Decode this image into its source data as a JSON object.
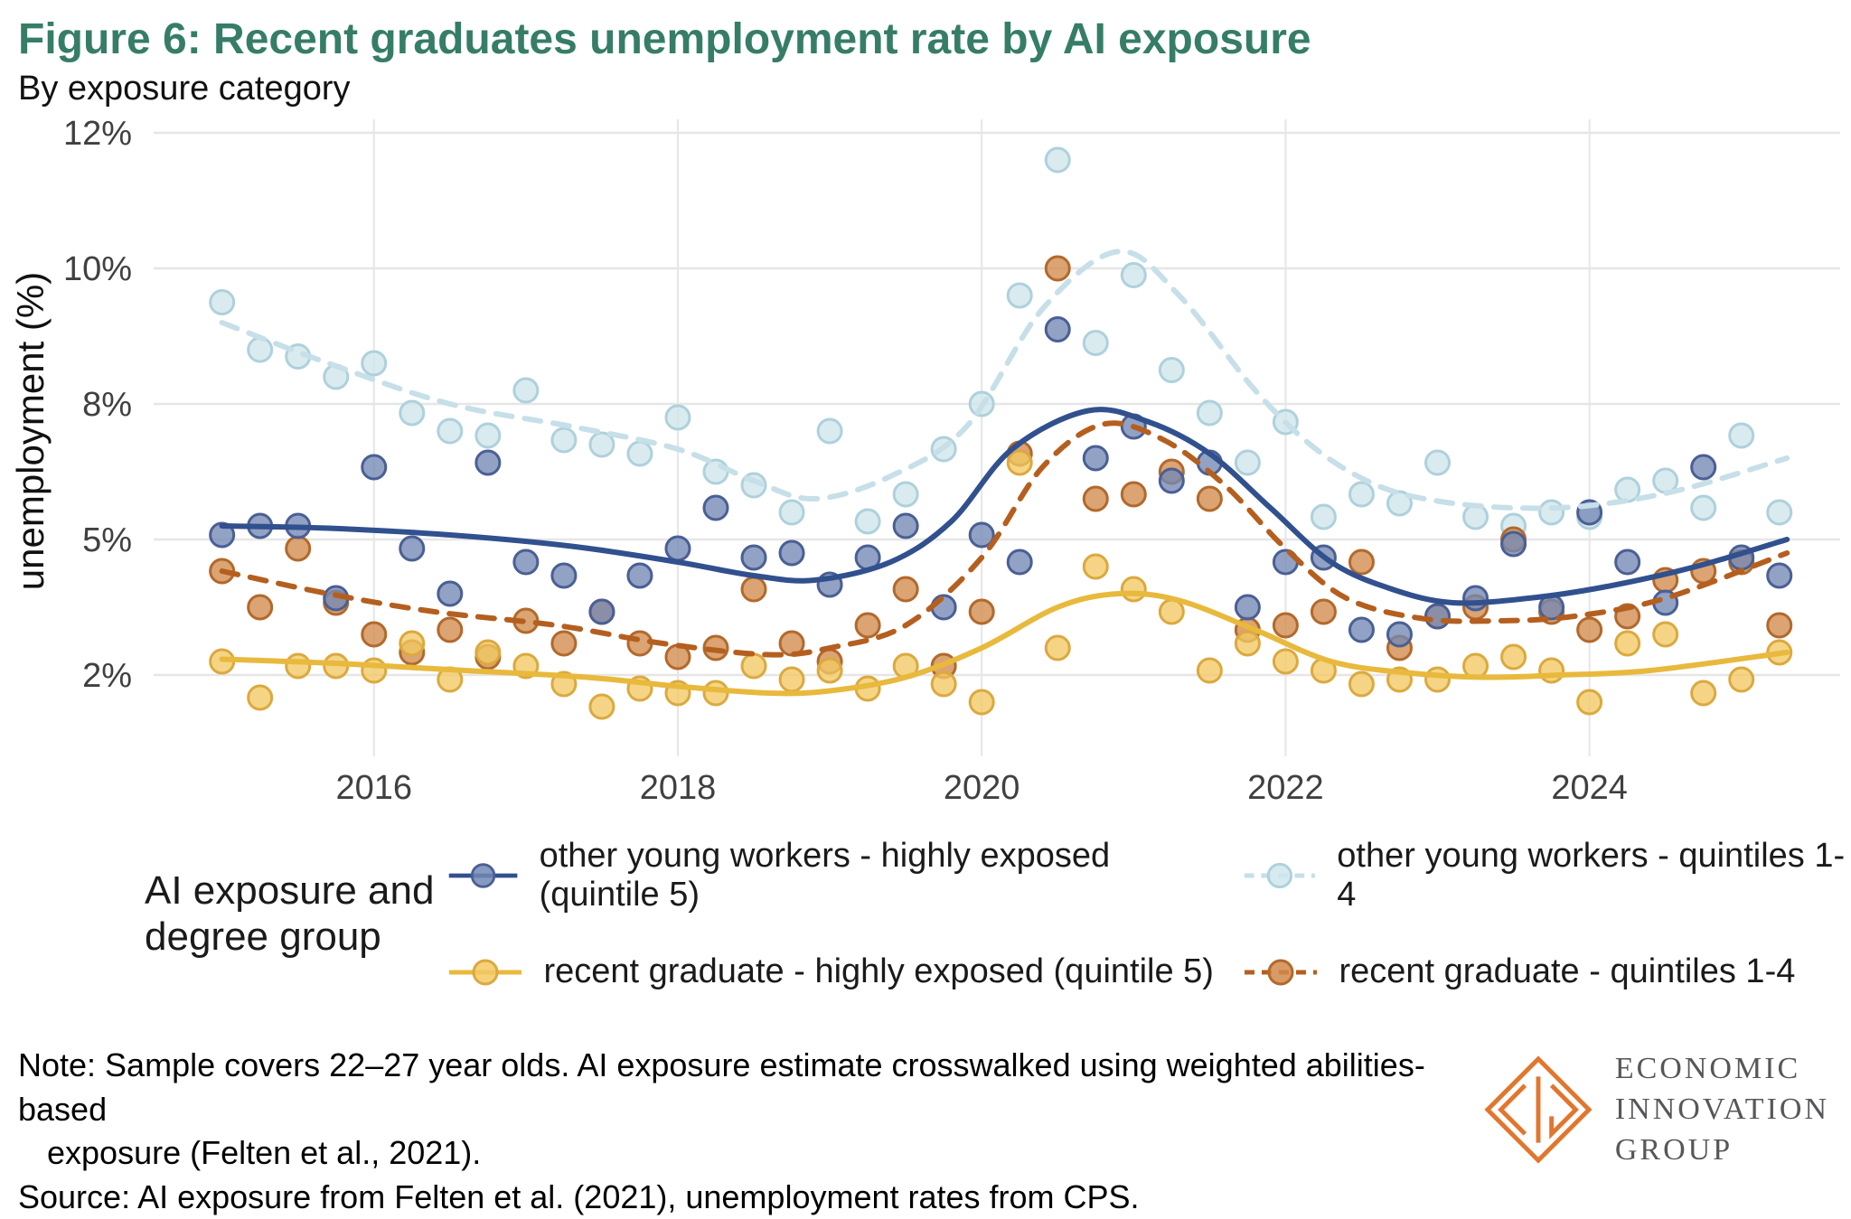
{
  "title": "Figure 6: Recent graduates unemployment rate by AI exposure",
  "subtitle": "By exposure category",
  "colors": {
    "title": "#367d67",
    "logo_orange": "#e2762e",
    "grid": "#e6e6e6",
    "axis_text": "#404040"
  },
  "chart_data": {
    "type": "scatter",
    "title": "Figure 6: Recent graduates unemployment rate by AI exposure",
    "subtitle": "By exposure category",
    "xlabel": "",
    "ylabel": "unemployment (%)",
    "x_range": [
      2014.55,
      2025.65
    ],
    "x_ticks": [
      2016,
      2018,
      2020,
      2022,
      2024
    ],
    "y_ticks": [
      2,
      5,
      8,
      10,
      12
    ],
    "y_tick_labels": [
      "2%",
      "5%",
      "8%",
      "10%",
      "12%"
    ],
    "grid": true,
    "legend_position": "bottom",
    "series": [
      {
        "name": "other young workers - highly exposed (quintile 5)",
        "color": "#31508e",
        "point_fill": "#7388b5",
        "point_stroke": "#4a5f94",
        "line_style": "solid",
        "points": [
          [
            2015.0,
            5.1
          ],
          [
            2015.25,
            5.3
          ],
          [
            2015.5,
            5.3
          ],
          [
            2015.75,
            3.7
          ],
          [
            2016.0,
            6.6
          ],
          [
            2016.25,
            4.8
          ],
          [
            2016.5,
            3.8
          ],
          [
            2016.75,
            6.7
          ],
          [
            2017.0,
            4.5
          ],
          [
            2017.25,
            4.2
          ],
          [
            2017.5,
            3.4
          ],
          [
            2017.75,
            4.2
          ],
          [
            2018.0,
            4.8
          ],
          [
            2018.25,
            5.7
          ],
          [
            2018.5,
            4.6
          ],
          [
            2018.75,
            4.7
          ],
          [
            2019.0,
            4.0
          ],
          [
            2019.25,
            4.6
          ],
          [
            2019.5,
            5.3
          ],
          [
            2019.75,
            3.5
          ],
          [
            2020.0,
            5.1
          ],
          [
            2020.25,
            4.5
          ],
          [
            2020.5,
            9.1
          ],
          [
            2020.75,
            6.8
          ],
          [
            2021.0,
            7.5
          ],
          [
            2021.25,
            6.3
          ],
          [
            2021.5,
            6.7
          ],
          [
            2021.75,
            3.5
          ],
          [
            2022.0,
            4.5
          ],
          [
            2022.25,
            4.6
          ],
          [
            2022.5,
            3.0
          ],
          [
            2022.75,
            2.9
          ],
          [
            2023.0,
            3.3
          ],
          [
            2023.25,
            3.7
          ],
          [
            2023.5,
            4.9
          ],
          [
            2023.75,
            3.5
          ],
          [
            2024.0,
            5.6
          ],
          [
            2024.25,
            4.5
          ],
          [
            2024.5,
            3.6
          ],
          [
            2024.75,
            6.6
          ],
          [
            2025.0,
            4.6
          ],
          [
            2025.25,
            4.2
          ]
        ],
        "trend": [
          [
            2015,
            5.3
          ],
          [
            2015.7,
            5.25
          ],
          [
            2016.5,
            5.1
          ],
          [
            2017.3,
            4.85
          ],
          [
            2018,
            4.5
          ],
          [
            2018.5,
            4.2
          ],
          [
            2018.9,
            4.1
          ],
          [
            2019.4,
            4.5
          ],
          [
            2019.8,
            5.4
          ],
          [
            2020.2,
            7.0
          ],
          [
            2020.7,
            7.85
          ],
          [
            2021.1,
            7.6
          ],
          [
            2021.5,
            6.9
          ],
          [
            2021.9,
            5.7
          ],
          [
            2022.3,
            4.5
          ],
          [
            2022.7,
            3.9
          ],
          [
            2023.1,
            3.6
          ],
          [
            2023.6,
            3.7
          ],
          [
            2024.1,
            3.95
          ],
          [
            2024.7,
            4.4
          ],
          [
            2025.3,
            5.0
          ]
        ]
      },
      {
        "name": "other young workers - quintiles 1-4",
        "color": "#c6dfe8",
        "point_fill": "#cfe6ec",
        "point_stroke": "#aed1dc",
        "line_style": "dashed",
        "points": [
          [
            2015.0,
            9.5
          ],
          [
            2015.25,
            8.8
          ],
          [
            2015.5,
            8.7
          ],
          [
            2015.75,
            8.4
          ],
          [
            2016.0,
            8.6
          ],
          [
            2016.25,
            7.8
          ],
          [
            2016.5,
            7.4
          ],
          [
            2016.75,
            7.3
          ],
          [
            2017.0,
            8.2
          ],
          [
            2017.25,
            7.2
          ],
          [
            2017.5,
            7.1
          ],
          [
            2017.75,
            6.9
          ],
          [
            2018.0,
            7.7
          ],
          [
            2018.25,
            6.5
          ],
          [
            2018.5,
            6.2
          ],
          [
            2018.75,
            5.6
          ],
          [
            2019.0,
            7.4
          ],
          [
            2019.25,
            5.4
          ],
          [
            2019.5,
            6.0
          ],
          [
            2019.75,
            7.0
          ],
          [
            2020.0,
            8.0
          ],
          [
            2020.25,
            9.6
          ],
          [
            2020.5,
            11.6
          ],
          [
            2020.75,
            8.9
          ],
          [
            2021.0,
            9.9
          ],
          [
            2021.25,
            8.5
          ],
          [
            2021.5,
            7.8
          ],
          [
            2021.75,
            6.7
          ],
          [
            2022.0,
            7.6
          ],
          [
            2022.25,
            5.5
          ],
          [
            2022.5,
            6.0
          ],
          [
            2022.75,
            5.8
          ],
          [
            2023.0,
            6.7
          ],
          [
            2023.25,
            5.5
          ],
          [
            2023.5,
            5.3
          ],
          [
            2023.75,
            5.6
          ],
          [
            2024.0,
            5.5
          ],
          [
            2024.25,
            6.1
          ],
          [
            2024.5,
            6.3
          ],
          [
            2024.75,
            5.7
          ],
          [
            2025.0,
            7.3
          ],
          [
            2025.25,
            5.6
          ]
        ],
        "trend": [
          [
            2015,
            9.2
          ],
          [
            2015.7,
            8.6
          ],
          [
            2016.5,
            8.0
          ],
          [
            2017.3,
            7.5
          ],
          [
            2018,
            7.0
          ],
          [
            2018.5,
            6.3
          ],
          [
            2018.9,
            5.9
          ],
          [
            2019.4,
            6.4
          ],
          [
            2019.9,
            7.5
          ],
          [
            2020.4,
            9.4
          ],
          [
            2020.9,
            10.25
          ],
          [
            2021.3,
            9.6
          ],
          [
            2021.8,
            8.2
          ],
          [
            2022.2,
            7.0
          ],
          [
            2022.6,
            6.2
          ],
          [
            2023,
            5.85
          ],
          [
            2023.5,
            5.7
          ],
          [
            2024,
            5.75
          ],
          [
            2024.6,
            6.1
          ],
          [
            2025.3,
            6.8
          ]
        ]
      },
      {
        "name": "recent graduate - highly exposed (quintile 5)",
        "color": "#e8b93c",
        "point_fill": "#f2c963",
        "point_stroke": "#dba93f",
        "line_style": "solid",
        "points": [
          [
            2015.0,
            2.3
          ],
          [
            2015.25,
            1.5
          ],
          [
            2015.5,
            2.2
          ],
          [
            2015.75,
            2.2
          ],
          [
            2016.0,
            2.1
          ],
          [
            2016.25,
            2.7
          ],
          [
            2016.5,
            1.9
          ],
          [
            2016.75,
            2.5
          ],
          [
            2017.0,
            2.2
          ],
          [
            2017.25,
            1.8
          ],
          [
            2017.5,
            1.3
          ],
          [
            2017.75,
            1.7
          ],
          [
            2018.0,
            1.6
          ],
          [
            2018.25,
            1.6
          ],
          [
            2018.5,
            2.2
          ],
          [
            2018.75,
            1.9
          ],
          [
            2019.0,
            2.1
          ],
          [
            2019.25,
            1.7
          ],
          [
            2019.5,
            2.2
          ],
          [
            2019.75,
            1.8
          ],
          [
            2020.0,
            1.4
          ],
          [
            2020.25,
            6.7
          ],
          [
            2020.5,
            2.6
          ],
          [
            2020.75,
            4.4
          ],
          [
            2021.0,
            3.9
          ],
          [
            2021.25,
            3.4
          ],
          [
            2021.5,
            2.1
          ],
          [
            2021.75,
            2.7
          ],
          [
            2022.0,
            2.3
          ],
          [
            2022.25,
            2.1
          ],
          [
            2022.5,
            1.8
          ],
          [
            2022.75,
            1.9
          ],
          [
            2023.0,
            1.9
          ],
          [
            2023.25,
            2.2
          ],
          [
            2023.5,
            2.4
          ],
          [
            2023.75,
            2.1
          ],
          [
            2024.0,
            1.4
          ],
          [
            2024.25,
            2.7
          ],
          [
            2024.5,
            2.9
          ],
          [
            2024.75,
            1.6
          ],
          [
            2025.0,
            1.9
          ],
          [
            2025.25,
            2.5
          ]
        ],
        "trend": [
          [
            2015,
            2.35
          ],
          [
            2015.8,
            2.25
          ],
          [
            2016.6,
            2.1
          ],
          [
            2017.4,
            1.95
          ],
          [
            2018,
            1.75
          ],
          [
            2018.6,
            1.6
          ],
          [
            2019,
            1.65
          ],
          [
            2019.5,
            1.95
          ],
          [
            2020,
            2.6
          ],
          [
            2020.5,
            3.5
          ],
          [
            2020.9,
            3.8
          ],
          [
            2021.3,
            3.65
          ],
          [
            2021.8,
            3.0
          ],
          [
            2022.3,
            2.3
          ],
          [
            2022.8,
            2.05
          ],
          [
            2023.3,
            1.95
          ],
          [
            2023.8,
            2.0
          ],
          [
            2024.4,
            2.1
          ],
          [
            2025.3,
            2.5
          ]
        ]
      },
      {
        "name": "recent graduate - quintiles 1-4",
        "color": "#b55f1f",
        "point_fill": "#d18a4a",
        "point_stroke": "#b2692c",
        "line_style": "dashed",
        "points": [
          [
            2015.0,
            4.3
          ],
          [
            2015.25,
            3.5
          ],
          [
            2015.5,
            4.8
          ],
          [
            2015.75,
            3.6
          ],
          [
            2016.0,
            2.9
          ],
          [
            2016.25,
            2.5
          ],
          [
            2016.5,
            3.0
          ],
          [
            2016.75,
            2.4
          ],
          [
            2017.0,
            3.2
          ],
          [
            2017.25,
            2.7
          ],
          [
            2017.5,
            3.4
          ],
          [
            2017.75,
            2.7
          ],
          [
            2018.0,
            2.4
          ],
          [
            2018.25,
            2.6
          ],
          [
            2018.5,
            3.9
          ],
          [
            2018.75,
            2.7
          ],
          [
            2019.0,
            2.3
          ],
          [
            2019.25,
            3.1
          ],
          [
            2019.5,
            3.9
          ],
          [
            2019.75,
            2.2
          ],
          [
            2020.0,
            3.4
          ],
          [
            2020.25,
            6.9
          ],
          [
            2020.5,
            10.0
          ],
          [
            2020.75,
            5.9
          ],
          [
            2021.0,
            6.0
          ],
          [
            2021.25,
            6.5
          ],
          [
            2021.5,
            5.9
          ],
          [
            2021.75,
            3.0
          ],
          [
            2022.0,
            3.1
          ],
          [
            2022.25,
            3.4
          ],
          [
            2022.5,
            4.5
          ],
          [
            2022.75,
            2.6
          ],
          [
            2023.0,
            3.3
          ],
          [
            2023.25,
            3.5
          ],
          [
            2023.5,
            5.0
          ],
          [
            2023.75,
            3.4
          ],
          [
            2024.0,
            3.0
          ],
          [
            2024.25,
            3.3
          ],
          [
            2024.5,
            4.1
          ],
          [
            2024.75,
            4.3
          ],
          [
            2025.0,
            4.5
          ],
          [
            2025.25,
            3.1
          ]
        ],
        "trend": [
          [
            2015,
            4.3
          ],
          [
            2015.7,
            3.8
          ],
          [
            2016.4,
            3.4
          ],
          [
            2017.2,
            3.1
          ],
          [
            2017.9,
            2.7
          ],
          [
            2018.6,
            2.45
          ],
          [
            2019,
            2.6
          ],
          [
            2019.5,
            3.1
          ],
          [
            2020,
            4.6
          ],
          [
            2020.4,
            6.6
          ],
          [
            2020.8,
            7.55
          ],
          [
            2021.2,
            7.2
          ],
          [
            2021.6,
            6.2
          ],
          [
            2022,
            4.8
          ],
          [
            2022.4,
            3.7
          ],
          [
            2022.9,
            3.25
          ],
          [
            2023.4,
            3.2
          ],
          [
            2023.9,
            3.3
          ],
          [
            2024.5,
            3.7
          ],
          [
            2025.3,
            4.7
          ]
        ]
      }
    ]
  },
  "legend": {
    "label_line1": "AI exposure and",
    "label_line2": "degree group"
  },
  "notes": {
    "line1": "Note: Sample covers 22–27 year olds. AI exposure estimate crosswalked using weighted abilities-based",
    "line2": "exposure (Felten et al., 2021).",
    "line3": "Source: AI exposure from Felten et al. (2021), unemployment rates from CPS."
  },
  "branding": {
    "lines": [
      "ECONOMIC",
      "INNOVATION",
      "GROUP"
    ]
  }
}
